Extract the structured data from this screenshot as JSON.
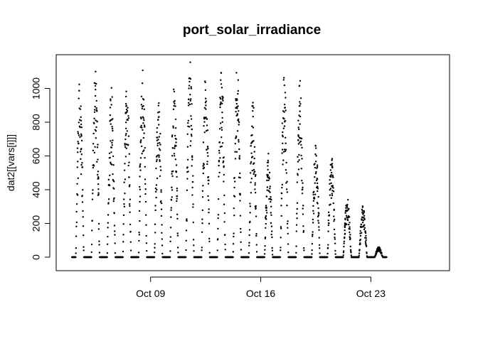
{
  "chart_data": {
    "type": "scatter",
    "title": "port_solar_irradiance",
    "xlabel": "",
    "ylabel": "dat2[[vars[i]]]",
    "ylim": [
      -80,
      1200
    ],
    "yticks": [
      0,
      200,
      400,
      600,
      800,
      1000
    ],
    "xlim": [
      "2023-10-03",
      "2023-10-28"
    ],
    "xticks": [
      {
        "date": "2023-10-09",
        "label": "Oct 09"
      },
      {
        "date": "2023-10-16",
        "label": "Oct 16"
      },
      {
        "date": "2023-10-23",
        "label": "Oct 23"
      }
    ],
    "x_range_data": [
      "2023-10-04",
      "2023-10-26"
    ],
    "point_style": "filled black dots",
    "grid": false,
    "series": [
      {
        "points_description": "daily irradiance peaks",
        "daily_peaks": [
          {
            "date": "2023-10-04",
            "peak": 1050
          },
          {
            "date": "2023-10-05",
            "peak": 1130
          },
          {
            "date": "2023-10-06",
            "peak": 1010
          },
          {
            "date": "2023-10-07",
            "peak": 1070
          },
          {
            "date": "2023-10-08",
            "peak": 1110
          },
          {
            "date": "2023-10-09",
            "peak": 950
          },
          {
            "date": "2023-10-10",
            "peak": 1020
          },
          {
            "date": "2023-10-11",
            "peak": 1180
          },
          {
            "date": "2023-10-12",
            "peak": 1110
          },
          {
            "date": "2023-10-13",
            "peak": 1150
          },
          {
            "date": "2023-10-14",
            "peak": 1140
          },
          {
            "date": "2023-10-15",
            "peak": 940
          },
          {
            "date": "2023-10-16",
            "peak": 620
          },
          {
            "date": "2023-10-17",
            "peak": 1090
          },
          {
            "date": "2023-10-18",
            "peak": 1060
          },
          {
            "date": "2023-10-19",
            "peak": 670
          },
          {
            "date": "2023-10-20",
            "peak": 620
          },
          {
            "date": "2023-10-21",
            "peak": 360
          },
          {
            "date": "2023-10-22",
            "peak": 310
          },
          {
            "date": "2023-10-23",
            "peak": 60
          }
        ]
      }
    ]
  }
}
